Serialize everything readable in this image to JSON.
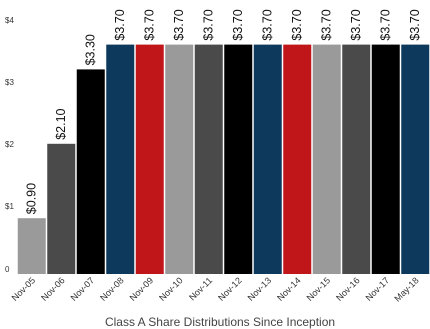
{
  "chart_data": {
    "type": "bar",
    "title": "Class A Share Distributions Since Inception",
    "xlabel": "",
    "ylabel": "",
    "categories": [
      "Nov-05",
      "Nov-06",
      "Nov-07",
      "Nov-08",
      "Nov-09",
      "Nov-10",
      "Nov-11",
      "Nov-12",
      "Nov-13",
      "Nov-14",
      "Nov-15",
      "Nov-16",
      "Nov-17",
      "May-18"
    ],
    "values": [
      0.9,
      2.1,
      3.3,
      3.7,
      3.7,
      3.7,
      3.7,
      3.7,
      3.7,
      3.7,
      3.7,
      3.7,
      3.7,
      3.7
    ],
    "value_labels": [
      "$0.90",
      "$2.10",
      "$3.30",
      "$3.70",
      "$3.70",
      "$3.70",
      "$3.70",
      "$3.70",
      "$3.70",
      "$3.70",
      "$3.70",
      "$3.70",
      "$3.70",
      "$3.70"
    ],
    "bar_colors": [
      "#9a9a9a",
      "#4a4a4a",
      "#000000",
      "#0d3a5c",
      "#c0161a",
      "#9a9a9a",
      "#4a4a4a",
      "#000000",
      "#0d3a5c",
      "#c0161a",
      "#9a9a9a",
      "#4a4a4a",
      "#000000",
      "#0d3a5c"
    ],
    "yticks": [
      0,
      1,
      2,
      3,
      4
    ],
    "ytick_labels": [
      "0",
      "$1",
      "$2",
      "$3",
      "$4"
    ],
    "ylim": [
      0,
      4
    ],
    "grid": false,
    "legend": "none"
  }
}
